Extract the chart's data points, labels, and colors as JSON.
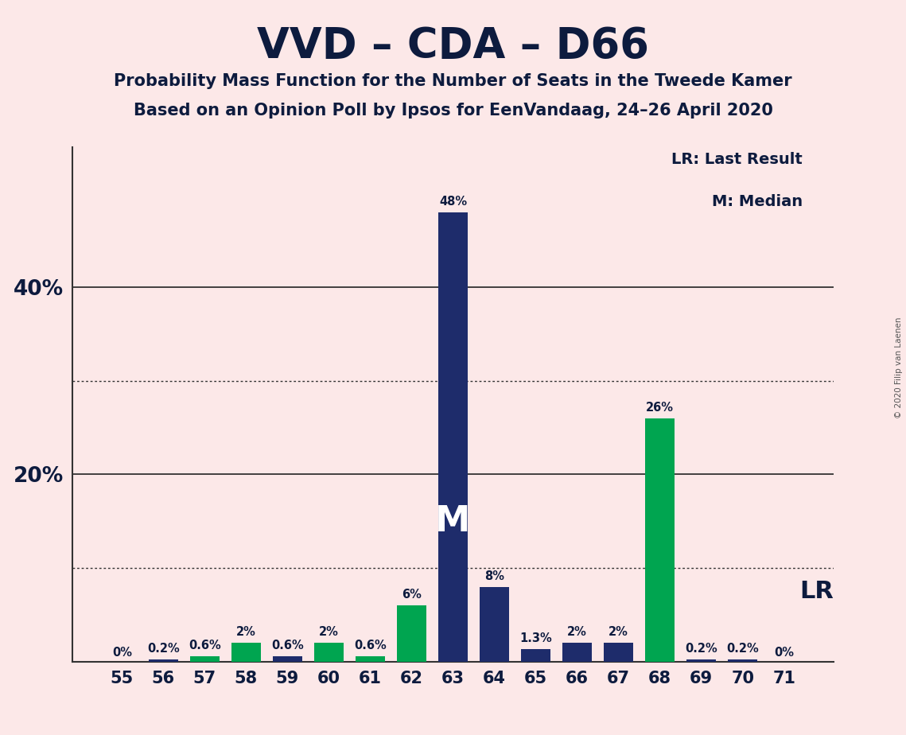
{
  "title": "VVD – CDA – D66",
  "subtitle1": "Probability Mass Function for the Number of Seats in the Tweede Kamer",
  "subtitle2": "Based on an Opinion Poll by Ipsos for EenVandaag, 24–26 April 2020",
  "copyright": "© 2020 Filip van Laenen",
  "seats": [
    55,
    56,
    57,
    58,
    59,
    60,
    61,
    62,
    63,
    64,
    65,
    66,
    67,
    68,
    69,
    70,
    71
  ],
  "pmf_values": [
    0.0,
    0.2,
    0.0,
    0.0,
    0.6,
    0.0,
    0.0,
    0.0,
    48.0,
    8.0,
    1.3,
    2.0,
    2.0,
    0.0,
    0.2,
    0.2,
    0.0
  ],
  "lr_values": [
    0.0,
    0.0,
    0.6,
    2.0,
    0.0,
    2.0,
    0.6,
    6.0,
    0.0,
    0.0,
    0.0,
    0.0,
    0.0,
    26.0,
    0.0,
    0.0,
    0.0
  ],
  "pmf_color": "#1e2c6b",
  "lr_color": "#00a550",
  "lr_color_dark": "#007a5e",
  "background_color": "#fce8e8",
  "bar_width": 0.72,
  "solid_gridlines": [
    20,
    40
  ],
  "dotted_gridlines": [
    10,
    30
  ],
  "ylim": [
    0,
    55
  ],
  "legend_lr": "LR: Last Result",
  "legend_m": "M: Median",
  "annot_lr": "LR",
  "median_seat": 63,
  "lr_seat": 68,
  "all_labels": [
    "0%",
    "0.2%",
    "0.6%",
    "2%",
    "0.6%",
    "2%",
    "0.6%",
    "6%",
    "48%",
    "8%",
    "1.3%",
    "2%",
    "2%",
    "26%",
    "0.2%",
    "0.2%",
    "0%"
  ]
}
